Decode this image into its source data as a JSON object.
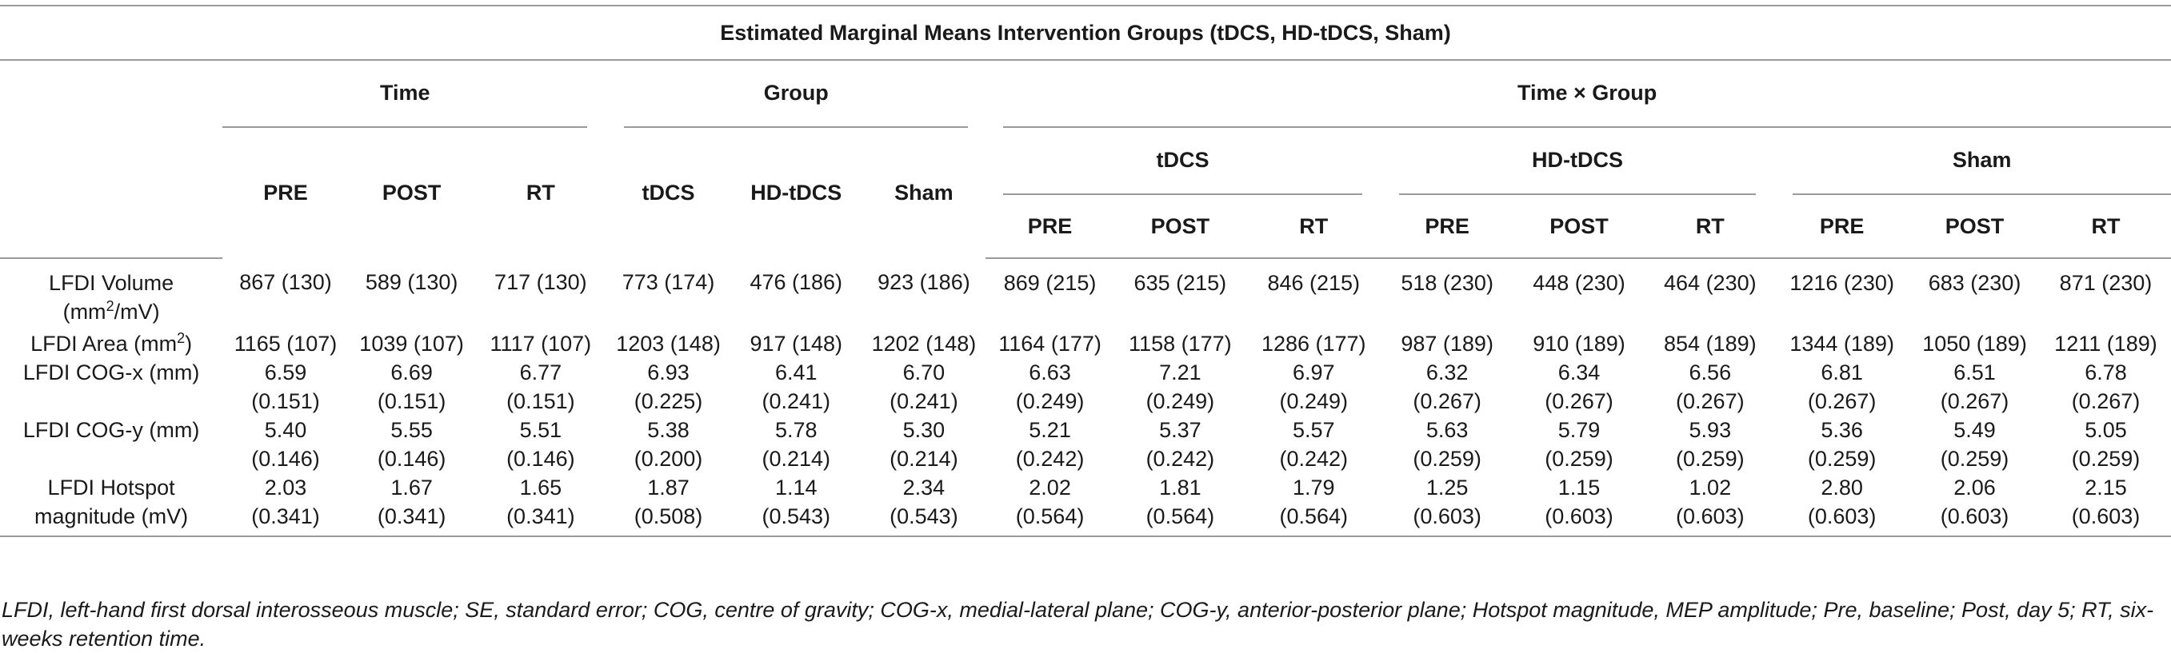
{
  "title": "Estimated Marginal Means Intervention Groups (tDCS, HD-tDCS, Sham)",
  "groups": {
    "time": "Time",
    "group": "Group",
    "time_x_group": "Time × Group"
  },
  "time_cols": [
    "PRE",
    "POST",
    "RT"
  ],
  "group_cols": [
    "tDCS",
    "HD-tDCS",
    "Sham"
  ],
  "tg_groups": [
    "tDCS",
    "HD-tDCS",
    "Sham"
  ],
  "tg_cols": [
    "PRE",
    "POST",
    "RT"
  ],
  "rows": [
    {
      "label_pre": "LFDI Volume",
      "label_line2_pre": "(mm",
      "label_sup": "2",
      "label_line2_post": "/mV)",
      "values": [
        "867 (130)",
        "589 (130)",
        "717 (130)",
        "773 (174)",
        "476 (186)",
        "923 (186)",
        "869 (215)",
        "635 (215)",
        "846 (215)",
        "518 (230)",
        "448 (230)",
        "464 (230)",
        "1216 (230)",
        "683 (230)",
        "871 (230)"
      ]
    },
    {
      "label_pre": "LFDI Area (mm",
      "label_sup": "2",
      "label_post": ")",
      "values": [
        "1165 (107)",
        "1039 (107)",
        "1117 (107)",
        "1203 (148)",
        "917 (148)",
        "1202 (148)",
        "1164 (177)",
        "1158 (177)",
        "1286 (177)",
        "987 (189)",
        "910 (189)",
        "854 (189)",
        "1344 (189)",
        "1050 (189)",
        "1211 (189)"
      ]
    },
    {
      "label": "LFDI COG-x (mm)",
      "means": [
        "6.59",
        "6.69",
        "6.77",
        "6.93",
        "6.41",
        "6.70",
        "6.63",
        "7.21",
        "6.97",
        "6.32",
        "6.34",
        "6.56",
        "6.81",
        "6.51",
        "6.78"
      ],
      "ses": [
        "(0.151)",
        "(0.151)",
        "(0.151)",
        "(0.225)",
        "(0.241)",
        "(0.241)",
        "(0.249)",
        "(0.249)",
        "(0.249)",
        "(0.267)",
        "(0.267)",
        "(0.267)",
        "(0.267)",
        "(0.267)",
        "(0.267)"
      ]
    },
    {
      "label": "LFDI COG-y (mm)",
      "means": [
        "5.40",
        "5.55",
        "5.51",
        "5.38",
        "5.78",
        "5.30",
        "5.21",
        "5.37",
        "5.57",
        "5.63",
        "5.79",
        "5.93",
        "5.36",
        "5.49",
        "5.05"
      ],
      "ses": [
        "(0.146)",
        "(0.146)",
        "(0.146)",
        "(0.200)",
        "(0.214)",
        "(0.214)",
        "(0.242)",
        "(0.242)",
        "(0.242)",
        "(0.259)",
        "(0.259)",
        "(0.259)",
        "(0.259)",
        "(0.259)",
        "(0.259)"
      ]
    },
    {
      "label_line1": "LFDI Hotspot",
      "label_line2": "magnitude (mV)",
      "means": [
        "2.03",
        "1.67",
        "1.65",
        "1.87",
        "1.14",
        "2.34",
        "2.02",
        "1.81",
        "1.79",
        "1.25",
        "1.15",
        "1.02",
        "2.80",
        "2.06",
        "2.15"
      ],
      "ses": [
        "(0.341)",
        "(0.341)",
        "(0.341)",
        "(0.508)",
        "(0.543)",
        "(0.543)",
        "(0.564)",
        "(0.564)",
        "(0.564)",
        "(0.603)",
        "(0.603)",
        "(0.603)",
        "(0.603)",
        "(0.603)",
        "(0.603)"
      ]
    }
  ],
  "footnote": "LFDI, left-hand first dorsal interosseous muscle; SE, standard error; COG, centre of gravity; COG-x, medial-lateral plane; COG-y, anterior-posterior plane; Hotspot magnitude, MEP amplitude; Pre, baseline; Post, day 5; RT, six-weeks retention time."
}
